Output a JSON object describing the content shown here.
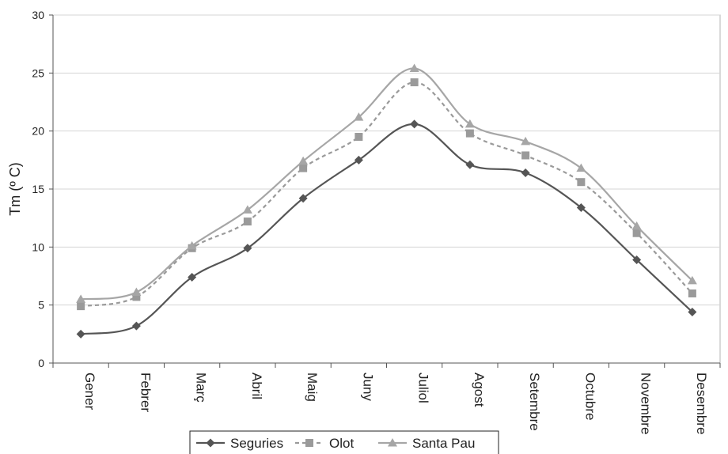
{
  "chart_data": {
    "type": "line",
    "ylabel": "Tm (º C)",
    "xlabel": "",
    "ylim": [
      0,
      30
    ],
    "yticks": [
      0,
      5,
      10,
      15,
      20,
      25,
      30
    ],
    "grid": true,
    "legend_position": "bottom",
    "categories": [
      "Gener",
      "Febrer",
      "Març",
      "Abril",
      "Maig",
      "Juny",
      "Juliol",
      "Agost",
      "Setembre",
      "Octubre",
      "Novembre",
      "Desembre"
    ],
    "series": [
      {
        "name": "Seguries",
        "marker": "diamond",
        "dash": "solid",
        "color": "#555555",
        "values": [
          2.5,
          3.2,
          7.4,
          9.9,
          14.2,
          17.5,
          20.6,
          17.1,
          16.4,
          13.4,
          8.9,
          4.4
        ]
      },
      {
        "name": "Olot",
        "marker": "square",
        "dash": "dashed",
        "color": "#9a9a9a",
        "values": [
          4.9,
          5.7,
          9.9,
          12.2,
          16.8,
          19.5,
          24.2,
          19.8,
          17.9,
          15.6,
          11.2,
          6.0
        ]
      },
      {
        "name": "Santa Pau",
        "marker": "triangle",
        "dash": "solid",
        "color": "#a6a6a6",
        "values": [
          5.5,
          6.1,
          10.1,
          13.2,
          17.4,
          21.2,
          25.4,
          20.6,
          19.1,
          16.8,
          11.8,
          7.1
        ]
      }
    ]
  }
}
